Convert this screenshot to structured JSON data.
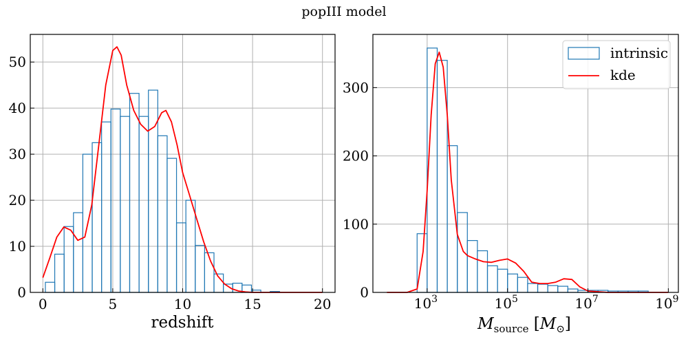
{
  "figure": {
    "title": "popIII model"
  },
  "chart_data": [
    {
      "type": "histogram+line",
      "xlabel": "redshift",
      "ylabel": "",
      "xlim": [
        -0.9,
        20.9
      ],
      "ylim": [
        0,
        56
      ],
      "xticks": [
        0,
        5,
        10,
        15,
        20
      ],
      "yticks": [
        0,
        10,
        20,
        30,
        40,
        50
      ],
      "grid": true,
      "colors": {
        "hist": "#1f77b4",
        "kde": "#ff0000"
      },
      "histogram": {
        "name": "intrinsic",
        "edges": [
          0.18,
          0.85,
          1.52,
          2.19,
          2.86,
          3.53,
          4.2,
          4.87,
          5.54,
          6.21,
          6.88,
          7.55,
          8.22,
          8.89,
          9.56,
          10.23,
          10.9,
          11.57,
          12.24,
          12.91,
          13.58,
          14.25,
          14.92,
          15.59,
          16.26,
          16.93,
          17.6,
          18.27,
          18.94,
          19.61
        ],
        "counts": [
          2.2,
          8.3,
          14.3,
          17.3,
          30.0,
          32.5,
          37.0,
          39.8,
          38.2,
          43.2,
          38.2,
          43.9,
          34.0,
          29.1,
          15.1,
          20.0,
          10.2,
          8.6,
          4.0,
          1.8,
          2.0,
          1.6,
          0.5,
          0,
          0.2,
          0,
          0,
          0,
          0
        ]
      },
      "kde": {
        "name": "kde",
        "x": [
          0.0,
          0.5,
          1.0,
          1.5,
          2.0,
          2.5,
          3.0,
          3.5,
          4.0,
          4.5,
          5.0,
          5.3,
          5.6,
          6.0,
          6.5,
          7.0,
          7.5,
          8.0,
          8.5,
          8.8,
          9.2,
          9.6,
          10.0,
          10.5,
          11.0,
          11.5,
          12.0,
          12.5,
          13.0,
          13.5,
          14.0,
          14.5,
          15.0,
          16.0,
          17.0,
          18.0,
          19.0,
          20.0
        ],
        "y": [
          3.2,
          7.5,
          12.0,
          14.2,
          13.5,
          11.3,
          12.0,
          19.0,
          32.0,
          45.0,
          52.5,
          53.3,
          51.5,
          45.0,
          39.5,
          36.5,
          35.0,
          36.0,
          39.0,
          39.5,
          37.0,
          32.0,
          26.0,
          21.0,
          16.0,
          11.0,
          6.8,
          3.6,
          1.8,
          0.8,
          0.3,
          0.1,
          0.0,
          0.0,
          0.0,
          0.0,
          0.0,
          0.0
        ]
      }
    },
    {
      "type": "histogram+line",
      "xlabel": "M_source [M_⊙]",
      "ylabel": "",
      "xscale": "log",
      "xlim_log10": [
        1.65,
        9.25
      ],
      "ylim": [
        0,
        378
      ],
      "xticks_log10": [
        3,
        5,
        7,
        9
      ],
      "yticks": [
        0,
        100,
        200,
        300
      ],
      "grid": true,
      "legend": {
        "placement": "top-right",
        "entries": [
          "intrinsic",
          "kde"
        ]
      },
      "colors": {
        "hist": "#1f77b4",
        "kde": "#ff0000"
      },
      "histogram": {
        "name": "intrinsic",
        "edges_log10": [
          2.75,
          3.0,
          3.25,
          3.5,
          3.75,
          4.0,
          4.25,
          4.5,
          4.75,
          5.0,
          5.25,
          5.5,
          5.75,
          6.0,
          6.25,
          6.5,
          6.75,
          7.0,
          7.25,
          7.5,
          7.75,
          8.0,
          8.25,
          8.5
        ],
        "counts": [
          86,
          358,
          340,
          215,
          117,
          76,
          61,
          39,
          34,
          27,
          22,
          13,
          12,
          10,
          9,
          5,
          3,
          3,
          3,
          2,
          2,
          2,
          2
        ]
      },
      "kde": {
        "name": "kde",
        "x_log10": [
          2.0,
          2.5,
          2.75,
          2.9,
          3.0,
          3.1,
          3.2,
          3.3,
          3.4,
          3.5,
          3.6,
          3.75,
          3.9,
          4.0,
          4.2,
          4.4,
          4.6,
          4.8,
          5.0,
          5.2,
          5.4,
          5.6,
          5.8,
          6.0,
          6.2,
          6.4,
          6.6,
          6.8,
          7.0,
          7.5,
          8.0,
          8.5,
          9.0
        ],
        "y": [
          0,
          0,
          5,
          60,
          150,
          260,
          335,
          352,
          330,
          260,
          165,
          85,
          60,
          54,
          49,
          45,
          44,
          47,
          49,
          43,
          31,
          15,
          13,
          13,
          15,
          20,
          19,
          8,
          2,
          0,
          0,
          0,
          0
        ]
      }
    }
  ]
}
